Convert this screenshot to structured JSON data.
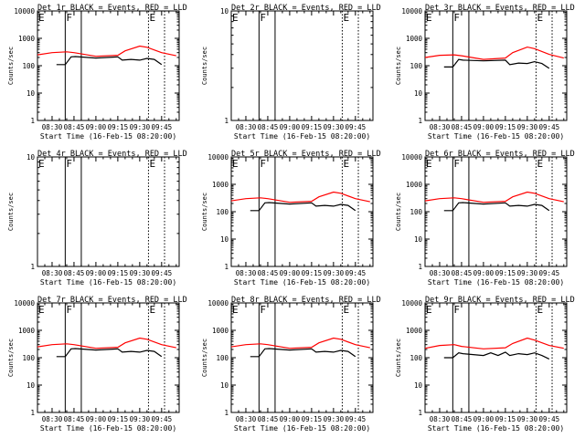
{
  "figure": {
    "type": "multi-panel time series",
    "legend_text": "BLACK = Events, RED = LLD",
    "ylabel": "Counts/sec",
    "xlabel": "Start Time (16-Feb-15 08:20:00)",
    "x_tick_labels": [
      "08:30",
      "08:45",
      "09:00",
      "09:15",
      "09:30",
      "09:45"
    ],
    "colors": {
      "events": "#000000",
      "lld": "#ff0000",
      "axes": "#000000",
      "background": "#ffffff"
    }
  },
  "chart_data": [
    {
      "title": "Det 1r",
      "type": "line",
      "yscale": "log",
      "ylim": [
        1,
        10000
      ],
      "yticks": [
        "1",
        "10",
        "100",
        "1000",
        "10000"
      ],
      "xlim": [
        "08:20",
        "09:57"
      ],
      "markers": [
        {
          "label": "E",
          "time": "08:20"
        },
        {
          "label": "F",
          "time": "08:39",
          "solid": true
        },
        {
          "label": "",
          "time": "08:50",
          "solid": true
        },
        {
          "label": "E",
          "time": "09:36"
        },
        {
          "label": "",
          "time": "09:47"
        }
      ],
      "series": [
        {
          "name": "Events",
          "color": "#000000",
          "x": [
            "08:33",
            "08:39",
            "08:43",
            "08:46",
            "09:00",
            "09:15",
            "09:18",
            "09:24",
            "09:30",
            "09:35",
            "09:40",
            "09:45"
          ],
          "y": [
            110,
            110,
            210,
            215,
            190,
            210,
            160,
            170,
            160,
            185,
            170,
            110
          ]
        },
        {
          "name": "LLD",
          "color": "#ff0000",
          "x": [
            "08:20",
            "08:30",
            "08:40",
            "08:45",
            "09:00",
            "09:15",
            "09:20",
            "09:30",
            "09:35",
            "09:45",
            "09:55"
          ],
          "y": [
            250,
            300,
            320,
            300,
            220,
            240,
            350,
            520,
            470,
            300,
            230
          ]
        }
      ]
    },
    {
      "title": "Det 2r",
      "type": "line",
      "yscale": "log",
      "ylim": [
        1,
        10
      ],
      "yticks": [
        "1",
        "10"
      ],
      "xlim": [
        "08:20",
        "09:57"
      ],
      "markers": [
        {
          "label": "E",
          "time": "08:20"
        },
        {
          "label": "F",
          "time": "08:39",
          "solid": true
        },
        {
          "label": "",
          "time": "08:50",
          "solid": true
        },
        {
          "label": "E",
          "time": "09:36"
        },
        {
          "label": "",
          "time": "09:47"
        }
      ],
      "series": []
    },
    {
      "title": "Det 3r",
      "type": "line",
      "yscale": "log",
      "ylim": [
        1,
        10000
      ],
      "yticks": [
        "1",
        "10",
        "100",
        "1000",
        "10000"
      ],
      "xlim": [
        "08:20",
        "09:57"
      ],
      "markers": [
        {
          "label": "E",
          "time": "08:20"
        },
        {
          "label": "F",
          "time": "08:39",
          "solid": true
        },
        {
          "label": "",
          "time": "08:50",
          "solid": true
        },
        {
          "label": "E",
          "time": "09:36"
        },
        {
          "label": "",
          "time": "09:47"
        }
      ],
      "series": [
        {
          "name": "Events",
          "color": "#000000",
          "x": [
            "08:33",
            "08:39",
            "08:43",
            "08:46",
            "09:00",
            "09:15",
            "09:18",
            "09:24",
            "09:30",
            "09:35",
            "09:40",
            "09:45"
          ],
          "y": [
            90,
            90,
            170,
            160,
            150,
            160,
            110,
            125,
            120,
            140,
            120,
            80
          ]
        },
        {
          "name": "LLD",
          "color": "#ff0000",
          "x": [
            "08:20",
            "08:30",
            "08:40",
            "08:45",
            "09:00",
            "09:15",
            "09:20",
            "09:30",
            "09:35",
            "09:45",
            "09:55"
          ],
          "y": [
            200,
            240,
            250,
            230,
            170,
            190,
            300,
            480,
            420,
            260,
            190
          ]
        }
      ]
    },
    {
      "title": "Det 4r",
      "type": "line",
      "yscale": "log",
      "ylim": [
        1,
        10
      ],
      "yticks": [
        "1",
        "10"
      ],
      "xlim": [
        "08:20",
        "09:57"
      ],
      "markers": [
        {
          "label": "E",
          "time": "08:20"
        },
        {
          "label": "F",
          "time": "08:39",
          "solid": true
        },
        {
          "label": "",
          "time": "08:50",
          "solid": true
        },
        {
          "label": "E",
          "time": "09:36"
        },
        {
          "label": "",
          "time": "09:47"
        }
      ],
      "series": []
    },
    {
      "title": "Det 5r",
      "type": "line",
      "yscale": "log",
      "ylim": [
        1,
        10000
      ],
      "yticks": [
        "1",
        "10",
        "100",
        "1000",
        "10000"
      ],
      "xlim": [
        "08:20",
        "09:57"
      ],
      "markers": [
        {
          "label": "E",
          "time": "08:20"
        },
        {
          "label": "F",
          "time": "08:39",
          "solid": true
        },
        {
          "label": "",
          "time": "08:50",
          "solid": true
        },
        {
          "label": "E",
          "time": "09:36"
        },
        {
          "label": "",
          "time": "09:47"
        }
      ],
      "series": [
        {
          "name": "Events",
          "color": "#000000",
          "x": [
            "08:33",
            "08:39",
            "08:43",
            "08:46",
            "09:00",
            "09:15",
            "09:18",
            "09:24",
            "09:30",
            "09:35",
            "09:40",
            "09:45"
          ],
          "y": [
            110,
            110,
            210,
            215,
            190,
            210,
            160,
            170,
            160,
            185,
            170,
            110
          ]
        },
        {
          "name": "LLD",
          "color": "#ff0000",
          "x": [
            "08:20",
            "08:30",
            "08:40",
            "08:45",
            "09:00",
            "09:15",
            "09:20",
            "09:30",
            "09:35",
            "09:45",
            "09:55"
          ],
          "y": [
            250,
            300,
            320,
            300,
            220,
            240,
            350,
            520,
            470,
            300,
            230
          ]
        }
      ]
    },
    {
      "title": "Det 6r",
      "type": "line",
      "yscale": "log",
      "ylim": [
        1,
        10000
      ],
      "yticks": [
        "1",
        "10",
        "100",
        "1000",
        "10000"
      ],
      "xlim": [
        "08:20",
        "09:57"
      ],
      "markers": [
        {
          "label": "E",
          "time": "08:20"
        },
        {
          "label": "F",
          "time": "08:39",
          "solid": true
        },
        {
          "label": "",
          "time": "08:50",
          "solid": true
        },
        {
          "label": "E",
          "time": "09:36"
        },
        {
          "label": "",
          "time": "09:47"
        }
      ],
      "series": [
        {
          "name": "Events",
          "color": "#000000",
          "x": [
            "08:33",
            "08:39",
            "08:43",
            "08:46",
            "09:00",
            "09:15",
            "09:18",
            "09:24",
            "09:30",
            "09:35",
            "09:40",
            "09:45"
          ],
          "y": [
            110,
            110,
            210,
            215,
            190,
            210,
            160,
            170,
            160,
            185,
            170,
            110
          ]
        },
        {
          "name": "LLD",
          "color": "#ff0000",
          "x": [
            "08:20",
            "08:30",
            "08:40",
            "08:45",
            "09:00",
            "09:15",
            "09:20",
            "09:30",
            "09:35",
            "09:45",
            "09:55"
          ],
          "y": [
            250,
            300,
            320,
            300,
            220,
            240,
            350,
            520,
            470,
            300,
            230
          ]
        }
      ]
    },
    {
      "title": "Det 7r",
      "type": "line",
      "yscale": "log",
      "ylim": [
        1,
        10000
      ],
      "yticks": [
        "1",
        "10",
        "100",
        "1000",
        "10000"
      ],
      "xlim": [
        "08:20",
        "09:57"
      ],
      "markers": [
        {
          "label": "E",
          "time": "08:20"
        },
        {
          "label": "F",
          "time": "08:39",
          "solid": true
        },
        {
          "label": "",
          "time": "08:50",
          "solid": true
        },
        {
          "label": "E",
          "time": "09:36"
        },
        {
          "label": "",
          "time": "09:47"
        }
      ],
      "series": [
        {
          "name": "Events",
          "color": "#000000",
          "x": [
            "08:33",
            "08:39",
            "08:43",
            "08:46",
            "09:00",
            "09:15",
            "09:18",
            "09:24",
            "09:30",
            "09:35",
            "09:40",
            "09:45"
          ],
          "y": [
            110,
            110,
            210,
            215,
            190,
            210,
            160,
            170,
            160,
            185,
            170,
            110
          ]
        },
        {
          "name": "LLD",
          "color": "#ff0000",
          "x": [
            "08:20",
            "08:30",
            "08:40",
            "08:45",
            "09:00",
            "09:15",
            "09:20",
            "09:30",
            "09:35",
            "09:45",
            "09:55"
          ],
          "y": [
            250,
            300,
            320,
            300,
            220,
            240,
            350,
            520,
            470,
            300,
            230
          ]
        }
      ]
    },
    {
      "title": "Det 8r",
      "type": "line",
      "yscale": "log",
      "ylim": [
        1,
        10000
      ],
      "yticks": [
        "1",
        "10",
        "100",
        "1000",
        "10000"
      ],
      "xlim": [
        "08:20",
        "09:57"
      ],
      "markers": [
        {
          "label": "E",
          "time": "08:20"
        },
        {
          "label": "F",
          "time": "08:39",
          "solid": true
        },
        {
          "label": "",
          "time": "08:50",
          "solid": true
        },
        {
          "label": "E",
          "time": "09:36"
        },
        {
          "label": "",
          "time": "09:47"
        }
      ],
      "series": [
        {
          "name": "Events",
          "color": "#000000",
          "x": [
            "08:33",
            "08:39",
            "08:43",
            "08:46",
            "09:00",
            "09:15",
            "09:18",
            "09:24",
            "09:30",
            "09:35",
            "09:40",
            "09:45"
          ],
          "y": [
            110,
            110,
            210,
            215,
            190,
            210,
            160,
            170,
            160,
            185,
            170,
            110
          ]
        },
        {
          "name": "LLD",
          "color": "#ff0000",
          "x": [
            "08:20",
            "08:30",
            "08:40",
            "08:45",
            "09:00",
            "09:15",
            "09:20",
            "09:30",
            "09:35",
            "09:45",
            "09:55"
          ],
          "y": [
            250,
            300,
            320,
            300,
            220,
            240,
            350,
            520,
            470,
            300,
            230
          ]
        }
      ]
    },
    {
      "title": "Det 9r",
      "type": "line",
      "yscale": "log",
      "ylim": [
        1,
        10000
      ],
      "yticks": [
        "1",
        "10",
        "100",
        "1000",
        "10000"
      ],
      "xlim": [
        "08:20",
        "09:57"
      ],
      "markers": [
        {
          "label": "E",
          "time": "08:20"
        },
        {
          "label": "F",
          "time": "08:39",
          "solid": true
        },
        {
          "label": "",
          "time": "08:50",
          "solid": true
        },
        {
          "label": "E",
          "time": "09:36"
        },
        {
          "label": "",
          "time": "09:47"
        }
      ],
      "series": [
        {
          "name": "Events",
          "color": "#000000",
          "x": [
            "08:33",
            "08:39",
            "08:43",
            "08:46",
            "09:00",
            "09:05",
            "09:10",
            "09:15",
            "09:18",
            "09:24",
            "09:30",
            "09:35",
            "09:40",
            "09:45"
          ],
          "y": [
            100,
            100,
            150,
            140,
            120,
            150,
            120,
            160,
            120,
            140,
            130,
            150,
            120,
            90
          ]
        },
        {
          "name": "LLD",
          "color": "#ff0000",
          "x": [
            "08:20",
            "08:30",
            "08:40",
            "08:45",
            "09:00",
            "09:15",
            "09:20",
            "09:30",
            "09:35",
            "09:45",
            "09:55"
          ],
          "y": [
            220,
            280,
            300,
            260,
            210,
            230,
            330,
            520,
            440,
            280,
            220
          ]
        }
      ]
    }
  ]
}
